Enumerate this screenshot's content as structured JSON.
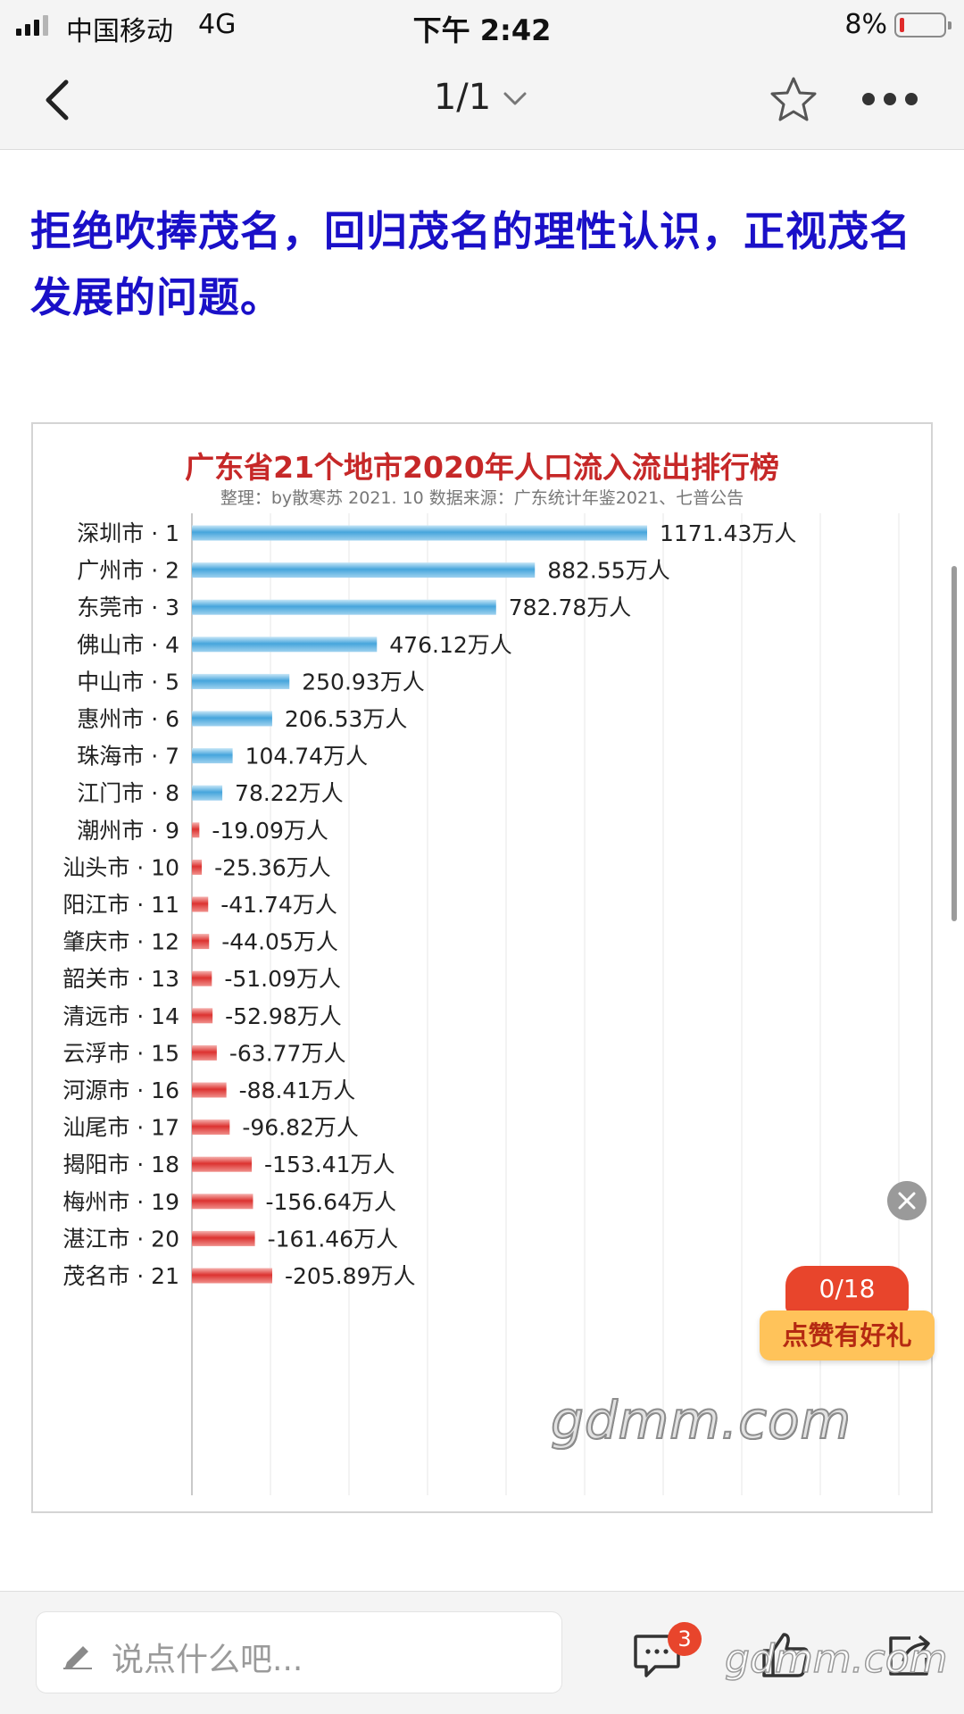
{
  "status_bar": {
    "carrier": "中国移动",
    "network": "4G",
    "time": "下午 2:42",
    "battery_percent": "8%",
    "battery_level": 0.08,
    "battery_low_color": "#e02b2b"
  },
  "nav": {
    "pager": "1/1",
    "back_icon": "chevron-left-icon",
    "dropdown_icon": "chevron-down-icon",
    "favorite_icon": "star-outline-icon",
    "more_icon": "ellipsis-icon"
  },
  "headline": {
    "line1": "拒绝吹捧茂名，回归茂名的理性认识，正视茂名",
    "line2": "发展的问题。",
    "color": "#1a10c8"
  },
  "chart_data": {
    "type": "bar",
    "orientation": "horizontal",
    "title": "广东省21个地市2020年人口流入流出排行榜",
    "subtitle": "整理：by散寒苏  2021. 10  数据来源：广东统计年鉴2021、七普公告",
    "unit": "万人",
    "categories": [
      "深圳市 · 1",
      "广州市 · 2",
      "东莞市 · 3",
      "佛山市 · 4",
      "中山市 · 5",
      "惠州市 · 6",
      "珠海市 · 7",
      "江门市 · 8",
      "潮州市 · 9",
      "汕头市 · 10",
      "阳江市 · 11",
      "肇庆市 · 12",
      "韶关市 · 13",
      "清远市 · 14",
      "云浮市 · 15",
      "河源市 · 16",
      "汕尾市 · 17",
      "揭阳市 · 18",
      "梅州市 · 19",
      "湛江市 · 20",
      "茂名市 · 21"
    ],
    "values": [
      1171.43,
      882.55,
      782.78,
      476.12,
      250.93,
      206.53,
      104.74,
      78.22,
      -19.09,
      -25.36,
      -41.74,
      -44.05,
      -51.09,
      -52.98,
      -63.77,
      -88.41,
      -96.82,
      -153.41,
      -156.64,
      -161.46,
      -205.89
    ],
    "labels": [
      "1171.43万人",
      "882.55万人",
      "782.78万人",
      "476.12万人",
      "250.93万人",
      "206.53万人",
      "104.74万人",
      "78.22万人",
      "-19.09万人",
      "-25.36万人",
      "-41.74万人",
      "-44.05万人",
      "-51.09万人",
      "-52.98万人",
      "-63.77万人",
      "-88.41万人",
      "-96.82万人",
      "-153.41万人",
      "-156.64万人",
      "-161.46万人",
      "-205.89万人"
    ],
    "positive_color": "#4aa8de",
    "negative_color": "#dd3b36",
    "grid": true,
    "watermark": "gdmm.com"
  },
  "like_widget": {
    "count": "0/18",
    "label": "点赞有好礼"
  },
  "bottom_bar": {
    "comment_placeholder": "说点什么吧...",
    "comment_count": "3",
    "watermark": "gdmm.com"
  }
}
